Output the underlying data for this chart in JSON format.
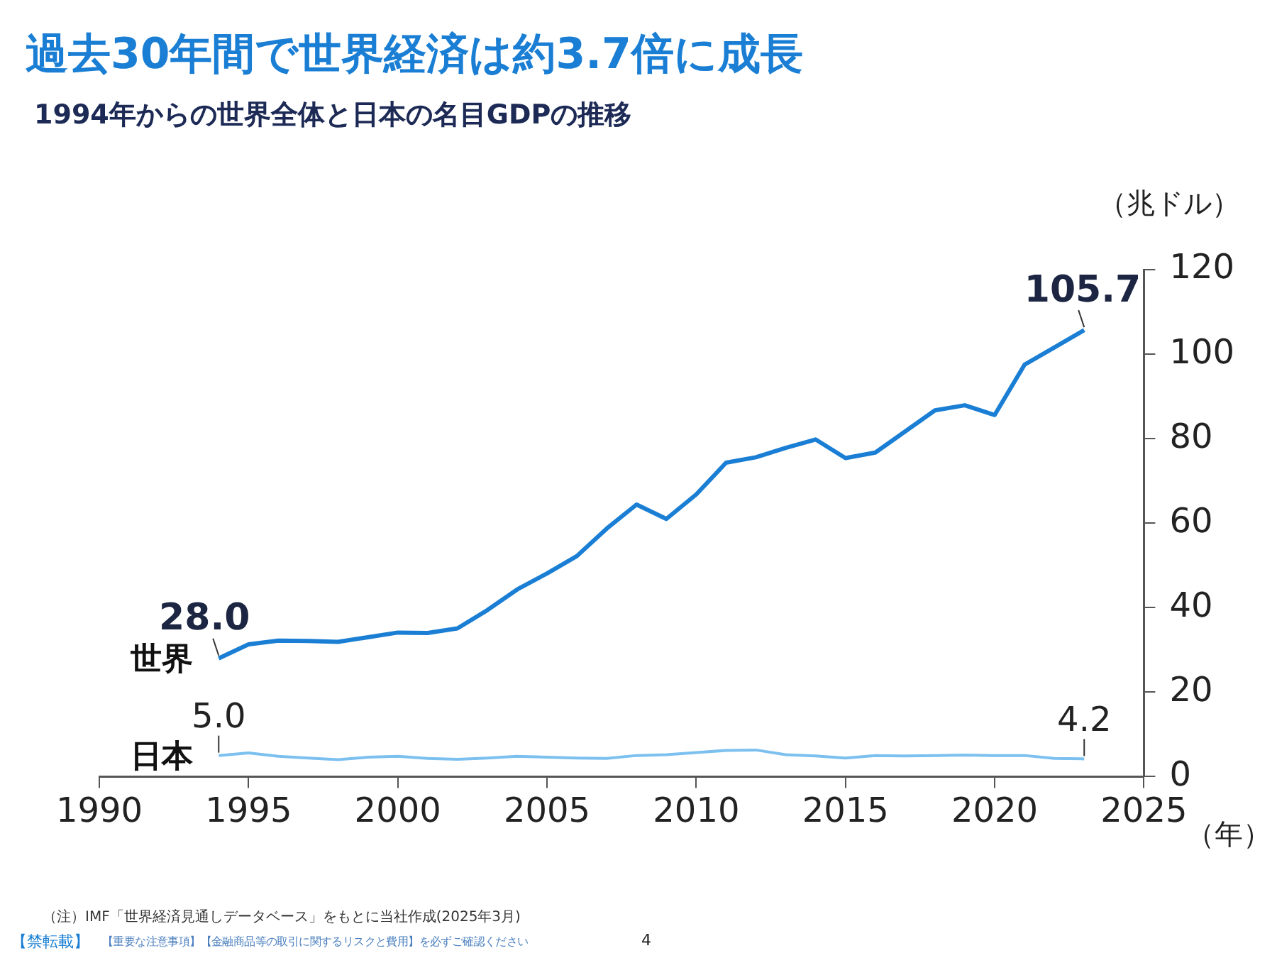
{
  "chart_data": {
    "type": "line",
    "title": "過去30年間で世界経済は約3.7倍に成長",
    "subtitle": "1994年からの世界全体と日本の名目GDPの推移",
    "ylabel": "（兆ドル）",
    "xlabel": "（年）",
    "x": [
      1994,
      1995,
      1996,
      1997,
      1998,
      1999,
      2000,
      2001,
      2002,
      2003,
      2004,
      2005,
      2006,
      2007,
      2008,
      2009,
      2010,
      2011,
      2012,
      2013,
      2014,
      2015,
      2016,
      2017,
      2018,
      2019,
      2020,
      2021,
      2022,
      2023
    ],
    "series": [
      {
        "name": "世界",
        "color": "#1a7fd4",
        "values": [
          28.0,
          31.3,
          32.2,
          32.1,
          31.9,
          33.0,
          34.1,
          34.0,
          35.1,
          39.4,
          44.3,
          48.1,
          52.2,
          58.7,
          64.4,
          61.0,
          66.8,
          74.3,
          75.6,
          77.8,
          79.8,
          75.4,
          76.7,
          81.7,
          86.7,
          87.9,
          85.6,
          97.5,
          101.6,
          105.7
        ],
        "value_labels": [
          "28.0",
          null,
          null,
          null,
          null,
          null,
          null,
          null,
          null,
          null,
          null,
          null,
          null,
          null,
          null,
          null,
          null,
          null,
          null,
          null,
          null,
          null,
          null,
          null,
          null,
          null,
          null,
          null,
          null,
          "105.7"
        ]
      },
      {
        "name": "日本",
        "color": "#7cc0f0",
        "values": [
          5.0,
          5.6,
          4.8,
          4.4,
          4.0,
          4.6,
          4.8,
          4.3,
          4.1,
          4.4,
          4.8,
          4.6,
          4.4,
          4.3,
          5.0,
          5.2,
          5.7,
          6.2,
          6.3,
          5.2,
          4.9,
          4.4,
          5.0,
          4.9,
          5.0,
          5.1,
          5.0,
          5.0,
          4.3,
          4.2
        ],
        "value_labels": [
          "5.0",
          null,
          null,
          null,
          null,
          null,
          null,
          null,
          null,
          null,
          null,
          null,
          null,
          null,
          null,
          null,
          null,
          null,
          null,
          null,
          null,
          null,
          null,
          null,
          null,
          null,
          null,
          null,
          null,
          "4.2"
        ]
      }
    ],
    "xlim": [
      1990,
      2025
    ],
    "xticks": [
      1990,
      1995,
      2000,
      2005,
      2010,
      2015,
      2020,
      2025
    ],
    "ylim": [
      0,
      120
    ],
    "yticks": [
      0,
      20,
      40,
      60,
      80,
      100,
      120
    ],
    "grid": false,
    "legend": false,
    "marker": "none",
    "line_style": "solid",
    "annotations": [
      "（注）IMF「世界経済見通しデータベース」をもとに当社作成(2025年3月)",
      "【禁転載】",
      "【重要な注意事項】【金融商品等の取引に関するリスクと費用】を必ずご確認ください",
      "4"
    ]
  }
}
